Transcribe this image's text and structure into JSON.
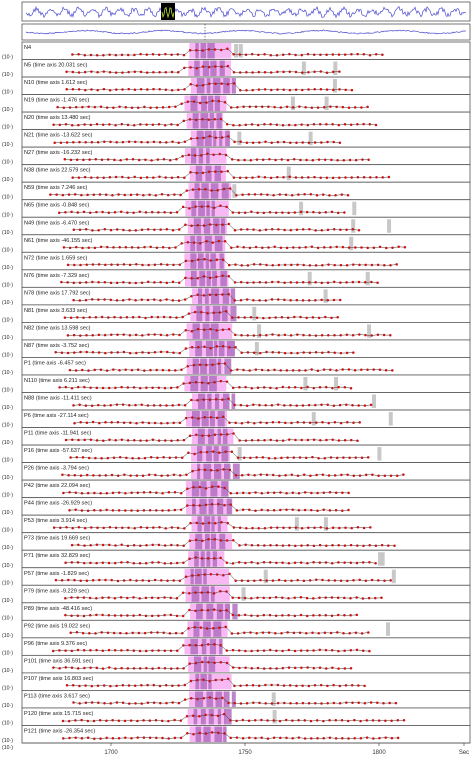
{
  "colors": {
    "panel_border": "#555555",
    "point": "#cc1111",
    "line": "#3a3a3a",
    "overview_trace": "#4a4ad0",
    "overview_highlight": "#000000",
    "band_light": "#f7b8f3",
    "band_dark": "#b36fbf",
    "gray_marker": "#c8c8c8"
  },
  "chart_data": {
    "type": "line",
    "xlabel": "",
    "ylabel": "",
    "x_ticks": [
      "1700",
      "1750",
      "1800",
      "Sec"
    ],
    "y_tick_label": "(10·)",
    "panels": [
      {
        "label": "N4"
      },
      {
        "label": "N5 (time axis 20.031 sec)"
      },
      {
        "label": "N10 (time axis 1.612 sec)"
      },
      {
        "label": "N19 (time axis -1.476 sec)"
      },
      {
        "label": "N20 (time axis 13.480 sec)"
      },
      {
        "label": "N21 (time axis -13.622 sec)"
      },
      {
        "label": "N27 (time axis -16.232 sec)"
      },
      {
        "label": "N38 (time axis 22.579 sec)"
      },
      {
        "label": "N59 (time axis 7.246 sec)"
      },
      {
        "label": "N65 (time axis -0.848 sec)"
      },
      {
        "label": "N49 (time axis -6.470 sec)"
      },
      {
        "label": "N61 (time axis -46.155 sec)"
      },
      {
        "label": "N72 (time axis 1.659 sec)"
      },
      {
        "label": "N76 (time axis -7.329 sec)"
      },
      {
        "label": "N78 (time axis 17.792 sec)"
      },
      {
        "label": "N81 (time axis 3.633 sec)"
      },
      {
        "label": "N82 (time axis 13.598 sec)"
      },
      {
        "label": "N87 (time axis -3.752 sec)"
      },
      {
        "label": "P1 (time axis -6.457 sec)"
      },
      {
        "label": "N110 (time axis 6.211 sec)"
      },
      {
        "label": "N88 (time axis -11.411 sec)"
      },
      {
        "label": "P6 (time axis -27.114 sec)"
      },
      {
        "label": "P11 (time axis -11.941 sec)"
      },
      {
        "label": "P16 (time axis -57.637 sec)"
      },
      {
        "label": "P26 (time axis -3.794 sec)"
      },
      {
        "label": "P42 (time axis 22.094 sec)"
      },
      {
        "label": "P44 (time axis -26.929 sec)"
      },
      {
        "label": "P53 (time axis 3.914 sec)"
      },
      {
        "label": "P73 (time axis 19.669 sec)"
      },
      {
        "label": "P71 (time axis 32.829 sec)"
      },
      {
        "label": "P57 (time axis -1.829 sec)"
      },
      {
        "label": "P79 (time axis -9.229 sec)"
      },
      {
        "label": "P89 (time axis -48.416 sec)"
      },
      {
        "label": "P92 (time axis 19.022 sec)"
      },
      {
        "label": "P96 (time axis 9.376 sec)"
      },
      {
        "label": "P101 (time axis 36.591 sec)"
      },
      {
        "label": "P107 (time axis 16.803 sec)"
      },
      {
        "label": "P113 (time axis 3.617 sec)"
      },
      {
        "label": "P120 (time axis 15.715 sec)"
      },
      {
        "label": "P121 (time axis -26.354 sec)"
      }
    ]
  }
}
